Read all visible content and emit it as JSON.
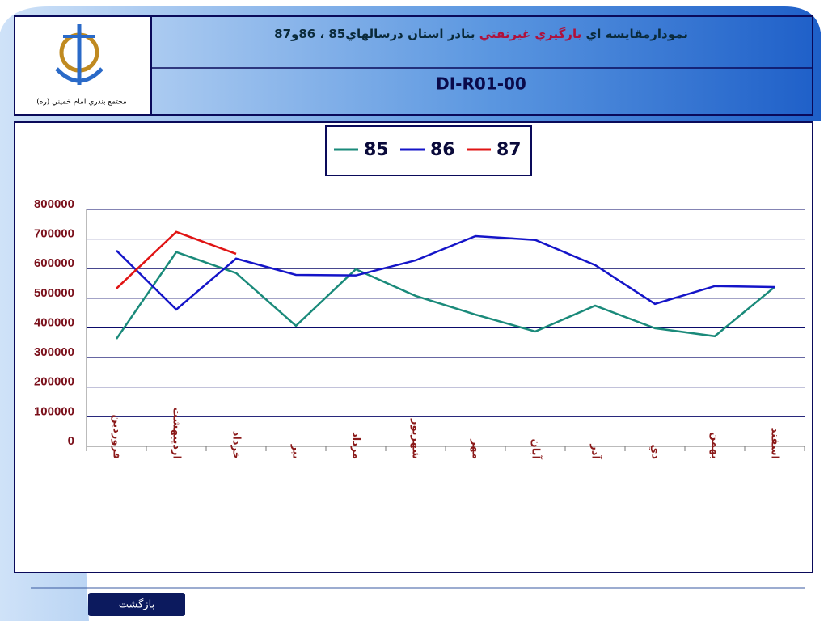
{
  "header": {
    "title_parts": [
      "نمودارمقايسه اي",
      "بارگيري غيرنفتي",
      "بنادر استان درسالهاي85 ، 86و87"
    ],
    "code": "DI-R01-00",
    "logo_caption": "مجتمع بندري امام خميني (ره)"
  },
  "button": "بازگشت",
  "chart_data": {
    "type": "line",
    "categories": [
      "فروردين",
      "ارديبهشت",
      "خرداد",
      "تير",
      "مرداد",
      "شهريور",
      "مهر",
      "آبان",
      "آذر",
      "دي",
      "بهمن",
      "اسفند"
    ],
    "series": [
      {
        "name": "85",
        "color": "#1a8a7a",
        "values": [
          363000,
          656000,
          585000,
          407000,
          598000,
          508000,
          445000,
          388000,
          475000,
          399000,
          372000,
          538000
        ]
      },
      {
        "name": "86",
        "color": "#1414c8",
        "values": [
          661000,
          462000,
          634000,
          579000,
          577000,
          628000,
          710000,
          697000,
          612000,
          481000,
          541000,
          538000
        ]
      },
      {
        "name": "87",
        "color": "#e01414",
        "values": [
          533000,
          724000,
          650000,
          null,
          null,
          null,
          null,
          null,
          null,
          null,
          null,
          null
        ]
      }
    ],
    "ylim": [
      0,
      800000
    ],
    "yticks": [
      0,
      100000,
      200000,
      300000,
      400000,
      500000,
      600000,
      700000,
      800000
    ],
    "grid": true
  }
}
